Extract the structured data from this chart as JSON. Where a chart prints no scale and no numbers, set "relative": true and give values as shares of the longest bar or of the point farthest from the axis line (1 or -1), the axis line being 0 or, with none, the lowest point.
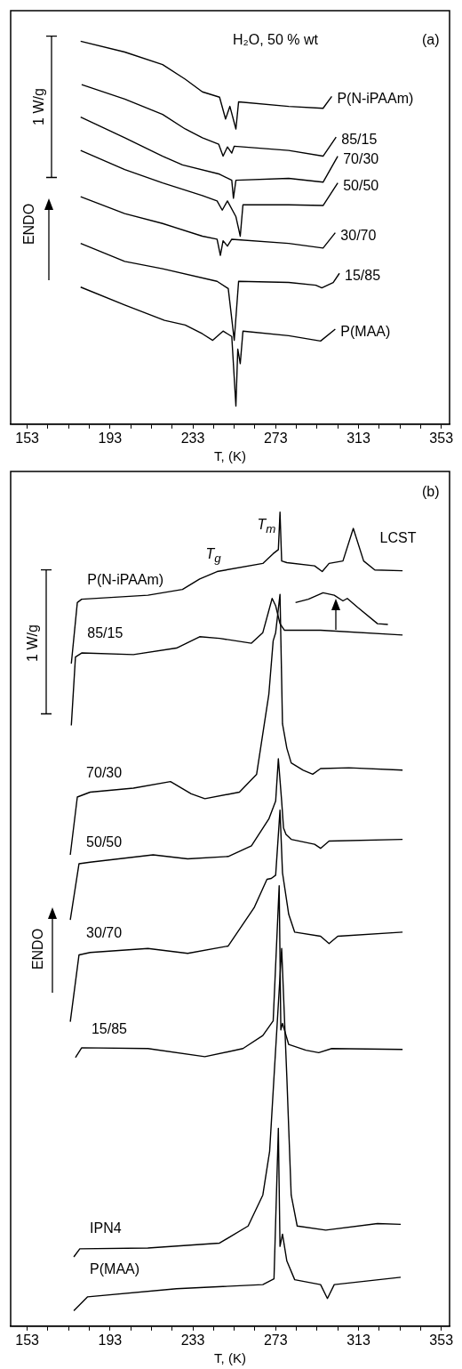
{
  "chart_data": [
    {
      "type": "line",
      "xlabel": "T, (K)",
      "relative": true,
      "grid": false,
      "legend": false,
      "tick_labels": "x",
      "xlim": [
        145,
        357
      ],
      "xticks": [
        153,
        {
          "value": 163,
          "label": null
        },
        {
          "value": 173,
          "label": null
        },
        {
          "value": 183,
          "label": null
        },
        193,
        {
          "value": 203,
          "label": null
        },
        {
          "value": 213,
          "label": null
        },
        {
          "value": 223,
          "label": null
        },
        233,
        {
          "value": 243,
          "label": null
        },
        {
          "value": 253,
          "label": null
        },
        {
          "value": 263,
          "label": null
        },
        273,
        {
          "value": 283,
          "label": null
        },
        {
          "value": 293,
          "label": null
        },
        {
          "value": 303,
          "label": null
        },
        313,
        {
          "value": 323,
          "label": null
        },
        {
          "value": 333,
          "label": null
        },
        {
          "value": 343,
          "label": null
        },
        353
      ],
      "annotations": [
        "H₂O, 50 % wt",
        "(a)",
        "1 W/g",
        "ENDO"
      ],
      "series": [
        {
          "name": "P(N-iPAAm)",
          "color": "#000000",
          "x": [
            178.8,
            200.1,
            218.4,
            229.3,
            237.6,
            245.9,
            248.8,
            250.9,
            253.8,
            255.1,
            279.3,
            295.9,
            300.1
          ],
          "values": [
            1.0,
            0.972,
            0.939,
            0.901,
            0.868,
            0.854,
            0.797,
            0.83,
            0.771,
            0.842,
            0.83,
            0.825,
            0.856
          ]
        },
        {
          "name": "85/15",
          "color": "#000000",
          "x": [
            179.3,
            200.1,
            218.4,
            229.3,
            237.6,
            245.5,
            247.6,
            249.7,
            251.8,
            253,
            279.3,
            295.9,
            302.2
          ],
          "values": [
            0.887,
            0.849,
            0.809,
            0.771,
            0.748,
            0.731,
            0.7,
            0.724,
            0.708,
            0.726,
            0.715,
            0.7,
            0.75
          ]
        },
        {
          "name": "70/30",
          "color": "#000000",
          "x": [
            178.8,
            200.1,
            218.4,
            228,
            245.9,
            251.8,
            252.6,
            253.8,
            279.3,
            295.9,
            303
          ],
          "values": [
            0.802,
            0.748,
            0.7,
            0.677,
            0.653,
            0.637,
            0.59,
            0.637,
            0.642,
            0.632,
            0.7
          ]
        },
        {
          "name": "50/50",
          "color": "#000000",
          "x": [
            178.8,
            200.1,
            218.4,
            237.6,
            244.7,
            247.2,
            249.7,
            253.8,
            255.9,
            257.2,
            279.3,
            295.9,
            303
          ],
          "values": [
            0.715,
            0.665,
            0.63,
            0.597,
            0.583,
            0.559,
            0.583,
            0.542,
            0.491,
            0.573,
            0.573,
            0.571,
            0.63
          ]
        },
        {
          "name": "30/70",
          "color": "#000000",
          "x": [
            178.8,
            200.1,
            218.4,
            237.6,
            244.7,
            246.3,
            247.6,
            249.7,
            251.8,
            279.3,
            295.9,
            301.8
          ],
          "values": [
            0.594,
            0.55,
            0.524,
            0.491,
            0.483,
            0.441,
            0.479,
            0.465,
            0.483,
            0.472,
            0.46,
            0.5
          ]
        },
        {
          "name": "15/85",
          "color": "#000000",
          "x": [
            178.8,
            200.1,
            218.4,
            244.7,
            250.1,
            253,
            255.1,
            279.3,
            292.4,
            295.3,
            300.8,
            303.8
          ],
          "values": [
            0.472,
            0.425,
            0.406,
            0.373,
            0.354,
            0.219,
            0.373,
            0.37,
            0.363,
            0.356,
            0.37,
            0.394
          ]
        },
        {
          "name": "P(MAA)",
          "color": "#000000",
          "x": [
            178.8,
            200.1,
            219.3,
            229.3,
            237.6,
            242.6,
            247.6,
            251.8,
            253.8,
            254.7,
            255.9,
            257.2,
            279.3,
            294.7,
            301.8
          ],
          "values": [
            0.358,
            0.311,
            0.271,
            0.259,
            0.236,
            0.219,
            0.243,
            0.229,
            0.047,
            0.196,
            0.158,
            0.243,
            0.231,
            0.217,
            0.248
          ]
        }
      ]
    },
    {
      "type": "line",
      "xlabel": "T, (K)",
      "relative": true,
      "grid": false,
      "legend": false,
      "tick_labels": "x",
      "xlim": [
        145,
        357
      ],
      "xticks": [
        153,
        {
          "value": 163,
          "label": null
        },
        {
          "value": 173,
          "label": null
        },
        {
          "value": 183,
          "label": null
        },
        193,
        {
          "value": 203,
          "label": null
        },
        {
          "value": 213,
          "label": null
        },
        {
          "value": 223,
          "label": null
        },
        233,
        {
          "value": 243,
          "label": null
        },
        {
          "value": 253,
          "label": null
        },
        {
          "value": 263,
          "label": null
        },
        273,
        {
          "value": 283,
          "label": null
        },
        {
          "value": 293,
          "label": null
        },
        {
          "value": 303,
          "label": null
        },
        313,
        {
          "value": 323,
          "label": null
        },
        {
          "value": 333,
          "label": null
        },
        {
          "value": 343,
          "label": null
        },
        353
      ],
      "annotations": [
        "(b)",
        "1 W/g",
        "ENDO",
        "T$_{g}$",
        "T$_{m}$",
        "LCST"
      ],
      "series": [
        {
          "name": "P(N-iPAAm)",
          "color": "#000000",
          "x": [
            174.3,
            177.2,
            179.3,
            211.3,
            228,
            236.3,
            244.7,
            266.8,
            271.8,
            274.3,
            275.1,
            275.9,
            278.4,
            291.8,
            295.5,
            298.8,
            305.5,
            310.5,
            315.5,
            320.9,
            334.3
          ],
          "values": [
            0.814,
            0.889,
            0.893,
            0.898,
            0.905,
            0.918,
            0.927,
            0.937,
            0.949,
            0.954,
            1.0,
            0.94,
            0.938,
            0.934,
            0.927,
            0.937,
            0.94,
            0.98,
            0.94,
            0.929,
            0.928
          ]
        },
        {
          "name": "85/15",
          "color": "#000000",
          "x": [
            174.3,
            176.3,
            179.3,
            204.3,
            225.1,
            236.3,
            245.9,
            261.3,
            266.8,
            271.3,
            273,
            275.1,
            277.2,
            294.7,
            334.3
          ],
          "values": [
            0.738,
            0.822,
            0.827,
            0.825,
            0.833,
            0.847,
            0.845,
            0.839,
            0.852,
            0.894,
            0.885,
            0.863,
            0.855,
            0.855,
            0.849
          ]
        },
        {
          "color": "#000000",
          "x": [
            282.6,
            288.8,
            295.9,
            301.3,
            305.5,
            307.6,
            312.6,
            322.2,
            327.2
          ],
          "values": [
            0.889,
            0.893,
            0.901,
            0.898,
            0.891,
            0.894,
            0.883,
            0.863,
            0.862
          ]
        },
        {
          "name": "70/30",
          "color": "#000000",
          "x": [
            173.8,
            177.2,
            183.4,
            204.3,
            222.2,
            232.2,
            238.8,
            255.5,
            263.8,
            269.7,
            271.8,
            273,
            275.1,
            276.3,
            278.4,
            280.5,
            286.3,
            290.9,
            294.7,
            308.4,
            334.3
          ],
          "values": [
            0.579,
            0.65,
            0.656,
            0.661,
            0.669,
            0.654,
            0.648,
            0.656,
            0.678,
            0.776,
            0.842,
            0.852,
            0.899,
            0.74,
            0.71,
            0.692,
            0.683,
            0.678,
            0.685,
            0.686,
            0.683
          ]
        },
        {
          "name": "50/50",
          "color": "#000000",
          "x": [
            173.8,
            178,
            183.4,
            213.8,
            230.5,
            250.1,
            261.3,
            269.7,
            273,
            274.3,
            275.9,
            276.8,
            278,
            280.5,
            291.8,
            294.7,
            298.8,
            334.3
          ],
          "values": [
            0.499,
            0.568,
            0.57,
            0.579,
            0.574,
            0.577,
            0.59,
            0.623,
            0.645,
            0.697,
            0.645,
            0.612,
            0.604,
            0.598,
            0.592,
            0.587,
            0.596,
            0.598
          ]
        },
        {
          "name": "30/70",
          "color": "#000000",
          "x": [
            173.8,
            178,
            183.4,
            211.3,
            230.5,
            250.1,
            262.6,
            268.8,
            270.9,
            273,
            275.1,
            276.3,
            279.3,
            282.2,
            294.7,
            298.8,
            303,
            334.3
          ],
          "values": [
            0.374,
            0.456,
            0.459,
            0.464,
            0.458,
            0.467,
            0.514,
            0.549,
            0.55,
            0.554,
            0.634,
            0.557,
            0.506,
            0.484,
            0.479,
            0.47,
            0.479,
            0.484
          ]
        },
        {
          "name": "15/85",
          "color": "#000000",
          "x": [
            176.3,
            179.3,
            211.3,
            238.8,
            257.2,
            266.8,
            271.8,
            274.7,
            275.5,
            276.3,
            279.3,
            287.6,
            293.8,
            300.1,
            334.3
          ],
          "values": [
            0.33,
            0.342,
            0.341,
            0.331,
            0.341,
            0.357,
            0.375,
            0.541,
            0.364,
            0.372,
            0.346,
            0.339,
            0.336,
            0.341,
            0.34
          ]
        },
        {
          "name": "IPN4",
          "color": "#000000",
          "x": [
            175.5,
            178.4,
            211.3,
            245.9,
            259.7,
            266.8,
            270.1,
            272.2,
            275.9,
            278.4,
            280.5,
            283.4,
            297.2,
            322.2,
            333.4
          ],
          "values": [
            0.085,
            0.095,
            0.096,
            0.102,
            0.123,
            0.161,
            0.215,
            0.306,
            0.464,
            0.306,
            0.161,
            0.123,
            0.118,
            0.126,
            0.125
          ]
        },
        {
          "name": "P(MAA)",
          "color": "#000000",
          "x": [
            175.5,
            182.2,
            225.1,
            266.8,
            272.2,
            274.3,
            275.1,
            276.3,
            278.4,
            282.2,
            294.7,
            298,
            301.3,
            333.4
          ],
          "values": [
            0.019,
            0.036,
            0.046,
            0.051,
            0.058,
            0.243,
            0.098,
            0.113,
            0.08,
            0.057,
            0.051,
            0.034,
            0.051,
            0.06
          ]
        }
      ]
    }
  ]
}
